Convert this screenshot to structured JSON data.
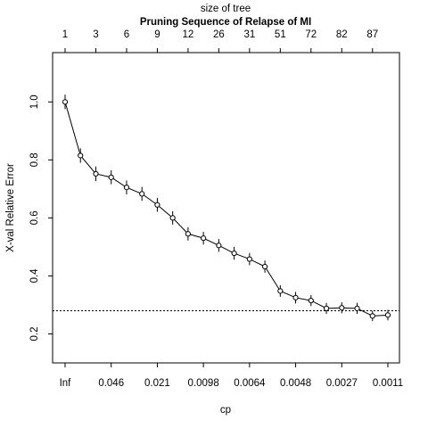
{
  "chart_data": {
    "type": "line",
    "title": "Pruning Sequence of Relapse of MI",
    "top_axis_label": "size of tree",
    "xlabel": "cp",
    "ylabel": "X-val Relative Error",
    "top_ticks": [
      "1",
      "3",
      "6",
      "9",
      "12",
      "26",
      "31",
      "51",
      "72",
      "82",
      "87"
    ],
    "bottom_ticks": [
      "Inf",
      "0.046",
      "0.021",
      "0.0098",
      "0.0064",
      "0.0048",
      "0.0027",
      "0.0011"
    ],
    "y_ticks": [
      "0.2",
      "0.4",
      "0.6",
      "0.8",
      "1.0"
    ],
    "ylim": [
      0.1,
      1.17
    ],
    "grid": false,
    "reference_line": {
      "y": 0.28,
      "style": "dotted"
    },
    "points": [
      {
        "x": 1,
        "y": 1.0,
        "se": 0.025
      },
      {
        "x": 2,
        "y": 0.815,
        "se": 0.025
      },
      {
        "x": 3,
        "y": 0.752,
        "se": 0.025
      },
      {
        "x": 4,
        "y": 0.74,
        "se": 0.024
      },
      {
        "x": 5,
        "y": 0.705,
        "se": 0.024
      },
      {
        "x": 6,
        "y": 0.683,
        "se": 0.024
      },
      {
        "x": 7,
        "y": 0.645,
        "se": 0.024
      },
      {
        "x": 8,
        "y": 0.6,
        "se": 0.023
      },
      {
        "x": 9,
        "y": 0.545,
        "se": 0.023
      },
      {
        "x": 10,
        "y": 0.53,
        "se": 0.022
      },
      {
        "x": 11,
        "y": 0.505,
        "se": 0.022
      },
      {
        "x": 12,
        "y": 0.478,
        "se": 0.022
      },
      {
        "x": 13,
        "y": 0.458,
        "se": 0.021
      },
      {
        "x": 14,
        "y": 0.432,
        "se": 0.021
      },
      {
        "x": 15,
        "y": 0.348,
        "se": 0.02
      },
      {
        "x": 16,
        "y": 0.325,
        "se": 0.02
      },
      {
        "x": 17,
        "y": 0.315,
        "se": 0.019
      },
      {
        "x": 18,
        "y": 0.288,
        "se": 0.019
      },
      {
        "x": 19,
        "y": 0.29,
        "se": 0.019
      },
      {
        "x": 20,
        "y": 0.288,
        "se": 0.019
      },
      {
        "x": 21,
        "y": 0.262,
        "se": 0.018
      },
      {
        "x": 22,
        "y": 0.265,
        "se": 0.018
      }
    ]
  }
}
